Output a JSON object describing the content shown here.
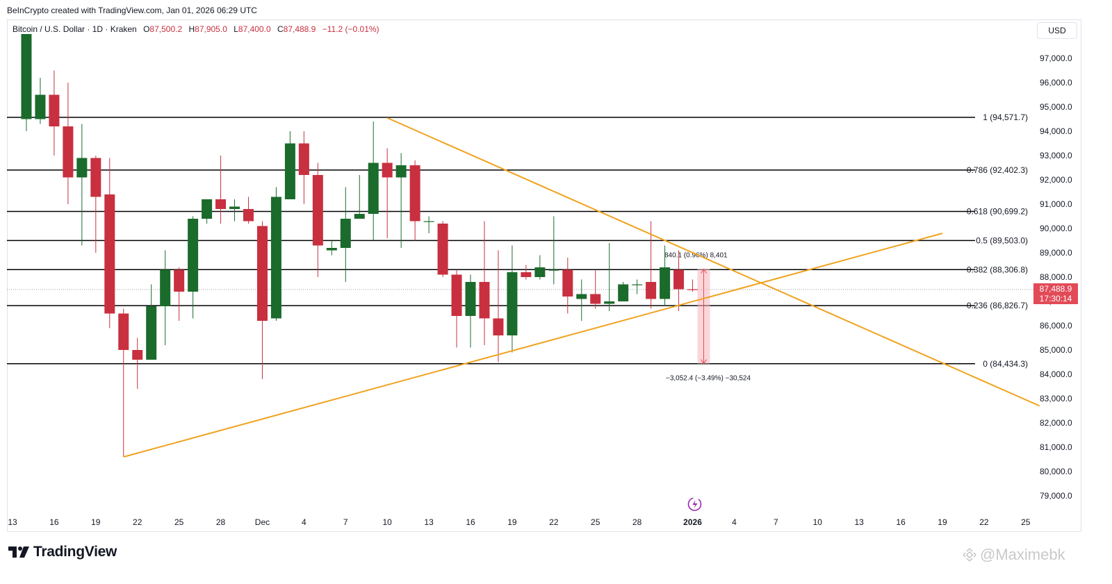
{
  "header": {
    "credit": "BeInCrypto created with TradingView.com, Jan 01, 2026 06:29 UTC"
  },
  "legend": {
    "symbol": "Bitcoin / U.S. Dollar · 1D · Kraken",
    "open_label": "O",
    "open": "87,500.2",
    "high_label": "H",
    "high": "87,905.0",
    "low_label": "L",
    "low": "87,400.0",
    "close_label": "C",
    "close": "87,488.9",
    "change": "−11.2 (−0.01%)"
  },
  "currency_button": "USD",
  "price_tag": {
    "price": "87,488.9",
    "countdown": "17:30:14"
  },
  "footer": {
    "logo_text": "TradingView",
    "watermark": "@Maximebk"
  },
  "colors": {
    "up": "#1b6b2c",
    "down": "#c8303f",
    "trendline": "#f0a21d",
    "fib": "#000000"
  },
  "chart_data": {
    "type": "candlestick",
    "y_axis": {
      "range": [
        78500,
        98200
      ],
      "ticks": [
        "79,000.0",
        "80,000.0",
        "81,000.0",
        "82,000.0",
        "83,000.0",
        "84,000.0",
        "85,000.0",
        "86,000.0",
        "87,000.0",
        "88,000.0",
        "89,000.0",
        "90,000.0",
        "91,000.0",
        "92,000.0",
        "93,000.0",
        "94,000.0",
        "95,000.0",
        "96,000.0",
        "97,000.0"
      ],
      "tick_values": [
        79000,
        80000,
        81000,
        82000,
        83000,
        84000,
        85000,
        86000,
        87000,
        88000,
        89000,
        90000,
        91000,
        92000,
        93000,
        94000,
        95000,
        96000,
        97000
      ]
    },
    "x_axis": {
      "labels": [
        {
          "text": "13",
          "day": 0
        },
        {
          "text": "16",
          "day": 3
        },
        {
          "text": "19",
          "day": 6
        },
        {
          "text": "22",
          "day": 9
        },
        {
          "text": "25",
          "day": 12
        },
        {
          "text": "28",
          "day": 15
        },
        {
          "text": "Dec",
          "day": 18
        },
        {
          "text": "4",
          "day": 21
        },
        {
          "text": "7",
          "day": 24
        },
        {
          "text": "10",
          "day": 27
        },
        {
          "text": "13",
          "day": 30
        },
        {
          "text": "16",
          "day": 33
        },
        {
          "text": "19",
          "day": 36
        },
        {
          "text": "22",
          "day": 39
        },
        {
          "text": "25",
          "day": 42
        },
        {
          "text": "28",
          "day": 45
        },
        {
          "text": "2026",
          "day": 49
        },
        {
          "text": "4",
          "day": 52
        },
        {
          "text": "7",
          "day": 55
        },
        {
          "text": "10",
          "day": 58
        },
        {
          "text": "13",
          "day": 61
        },
        {
          "text": "16",
          "day": 64
        },
        {
          "text": "19",
          "day": 67
        },
        {
          "text": "22",
          "day": 70
        },
        {
          "text": "25",
          "day": 73
        }
      ]
    },
    "candles": [
      {
        "day": 1,
        "o": 94500,
        "h": 98000,
        "l": 94000,
        "c": 98000
      },
      {
        "day": 2,
        "o": 94500,
        "h": 96200,
        "l": 94300,
        "c": 95500
      },
      {
        "day": 3,
        "o": 95500,
        "h": 96500,
        "l": 93000,
        "c": 94200
      },
      {
        "day": 4,
        "o": 94200,
        "h": 96000,
        "l": 91000,
        "c": 92100
      },
      {
        "day": 5,
        "o": 92100,
        "h": 94300,
        "l": 89300,
        "c": 92900
      },
      {
        "day": 6,
        "o": 92900,
        "h": 93000,
        "l": 89000,
        "c": 91300
      },
      {
        "day": 7,
        "o": 91400,
        "h": 92900,
        "l": 85900,
        "c": 86500
      },
      {
        "day": 8,
        "o": 86500,
        "h": 86700,
        "l": 80600,
        "c": 85000
      },
      {
        "day": 9,
        "o": 85000,
        "h": 85500,
        "l": 83400,
        "c": 84600
      },
      {
        "day": 10,
        "o": 84600,
        "h": 87700,
        "l": 84600,
        "c": 86800
      },
      {
        "day": 11,
        "o": 86800,
        "h": 89100,
        "l": 85200,
        "c": 88300
      },
      {
        "day": 12,
        "o": 88300,
        "h": 88400,
        "l": 86200,
        "c": 87400
      },
      {
        "day": 13,
        "o": 87400,
        "h": 90500,
        "l": 86300,
        "c": 90400
      },
      {
        "day": 14,
        "o": 90400,
        "h": 91200,
        "l": 90200,
        "c": 91200
      },
      {
        "day": 15,
        "o": 91200,
        "h": 93000,
        "l": 90200,
        "c": 90800
      },
      {
        "day": 16,
        "o": 90800,
        "h": 91200,
        "l": 90300,
        "c": 90900
      },
      {
        "day": 17,
        "o": 90800,
        "h": 91300,
        "l": 90200,
        "c": 90300
      },
      {
        "day": 18,
        "o": 90100,
        "h": 90300,
        "l": 83800,
        "c": 86200
      },
      {
        "day": 19,
        "o": 86300,
        "h": 91700,
        "l": 86200,
        "c": 91300
      },
      {
        "day": 20,
        "o": 91200,
        "h": 94000,
        "l": 91200,
        "c": 93500
      },
      {
        "day": 21,
        "o": 93500,
        "h": 94000,
        "l": 91000,
        "c": 92200
      },
      {
        "day": 22,
        "o": 92200,
        "h": 92700,
        "l": 88000,
        "c": 89300
      },
      {
        "day": 23,
        "o": 89100,
        "h": 89500,
        "l": 88900,
        "c": 89200
      },
      {
        "day": 24,
        "o": 89200,
        "h": 91700,
        "l": 87800,
        "c": 90400
      },
      {
        "day": 25,
        "o": 90400,
        "h": 92200,
        "l": 90400,
        "c": 90600
      },
      {
        "day": 26,
        "o": 90600,
        "h": 94400,
        "l": 89500,
        "c": 92700
      },
      {
        "day": 27,
        "o": 92700,
        "h": 93300,
        "l": 89600,
        "c": 92100
      },
      {
        "day": 28,
        "o": 92100,
        "h": 93100,
        "l": 89200,
        "c": 92600
      },
      {
        "day": 29,
        "o": 92600,
        "h": 92800,
        "l": 89500,
        "c": 90300
      },
      {
        "day": 30,
        "o": 90300,
        "h": 90500,
        "l": 89800,
        "c": 90300
      },
      {
        "day": 31,
        "o": 90200,
        "h": 90300,
        "l": 88000,
        "c": 88100
      },
      {
        "day": 32,
        "o": 88100,
        "h": 88300,
        "l": 85100,
        "c": 86400
      },
      {
        "day": 33,
        "o": 86400,
        "h": 88100,
        "l": 85100,
        "c": 87800
      },
      {
        "day": 34,
        "o": 87800,
        "h": 90300,
        "l": 85200,
        "c": 86300
      },
      {
        "day": 35,
        "o": 86300,
        "h": 89100,
        "l": 84500,
        "c": 85600
      },
      {
        "day": 36,
        "o": 85600,
        "h": 89300,
        "l": 84900,
        "c": 88200
      },
      {
        "day": 37,
        "o": 88200,
        "h": 88500,
        "l": 87900,
        "c": 88000
      },
      {
        "day": 38,
        "o": 88000,
        "h": 88900,
        "l": 87900,
        "c": 88400
      },
      {
        "day": 39,
        "o": 88300,
        "h": 90500,
        "l": 87700,
        "c": 88300
      },
      {
        "day": 40,
        "o": 88300,
        "h": 88800,
        "l": 86500,
        "c": 87200
      },
      {
        "day": 41,
        "o": 87100,
        "h": 87900,
        "l": 86200,
        "c": 87300
      },
      {
        "day": 42,
        "o": 87300,
        "h": 88300,
        "l": 86700,
        "c": 86900
      },
      {
        "day": 43,
        "o": 86900,
        "h": 89400,
        "l": 86600,
        "c": 87000
      },
      {
        "day": 44,
        "o": 87000,
        "h": 87800,
        "l": 87000,
        "c": 87700
      },
      {
        "day": 45,
        "o": 87700,
        "h": 87900,
        "l": 87300,
        "c": 87700
      },
      {
        "day": 46,
        "o": 87800,
        "h": 90300,
        "l": 86700,
        "c": 87100
      },
      {
        "day": 47,
        "o": 87100,
        "h": 89300,
        "l": 86800,
        "c": 88400
      },
      {
        "day": 48,
        "o": 88300,
        "h": 89100,
        "l": 86600,
        "c": 87500
      },
      {
        "day": 49,
        "o": 87500,
        "h": 87900,
        "l": 87400,
        "c": 87489
      }
    ],
    "fib_levels": [
      {
        "label": "1 (94,571.7)",
        "value": 94571.7
      },
      {
        "label": "0.786 (92,402.3)",
        "value": 92402.3
      },
      {
        "label": "0.618 (90,699.2)",
        "value": 90699.2
      },
      {
        "label": "0.5 (89,503.0)",
        "value": 89503.0
      },
      {
        "label": "0.382 (88,306.8)",
        "value": 88306.8
      },
      {
        "label": "0.236 (86,826.7)",
        "value": 86826.7
      },
      {
        "label": "0 (84,434.3)",
        "value": 84434.3
      }
    ],
    "trendlines": [
      {
        "name": "descending",
        "from": {
          "day": 27,
          "price": 94550
        },
        "to": {
          "day": 74,
          "price": 82700
        }
      },
      {
        "name": "ascending",
        "from": {
          "day": 8,
          "price": 80600
        },
        "to": {
          "day": 67,
          "price": 89800
        }
      }
    ],
    "measures": {
      "up_label": "840.1 (0.96%) 8,401",
      "down_label": "−3,052.4 (−3.49%) −30,524"
    },
    "current_price": 87488.9
  }
}
